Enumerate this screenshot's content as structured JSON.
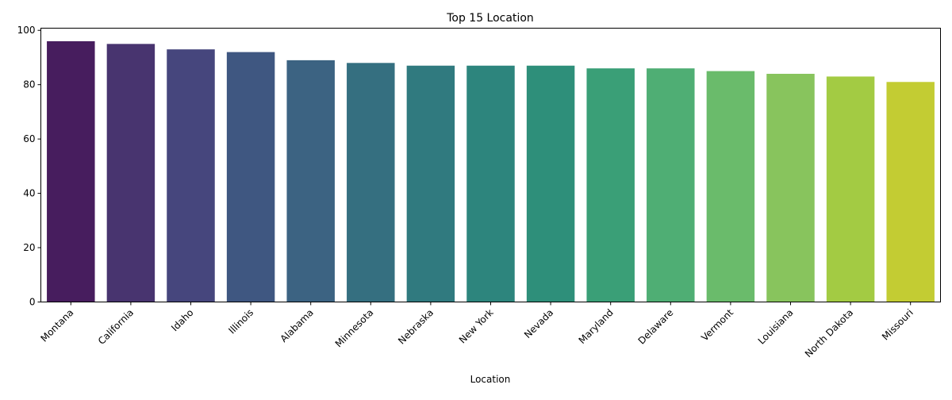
{
  "chart_data": {
    "type": "bar",
    "title": "Top 15 Location",
    "xlabel": "Location",
    "ylabel": "",
    "categories": [
      "Montana",
      "California",
      "Idaho",
      "Illinois",
      "Alabama",
      "Minnesota",
      "Nebraska",
      "New York",
      "Nevada",
      "Maryland",
      "Delaware",
      "Vermont",
      "Louisiana",
      "North Dakota",
      "Missouri"
    ],
    "values": [
      96,
      95,
      93,
      92,
      89,
      88,
      87,
      87,
      87,
      86,
      86,
      85,
      84,
      83,
      81
    ],
    "ylim": [
      0,
      100.8
    ],
    "yticks": [
      0,
      20,
      40,
      60,
      80,
      100
    ],
    "grid": false,
    "legend": "none",
    "colors": [
      "#471d5e",
      "#48346f",
      "#46467d",
      "#3f5781",
      "#3c6382",
      "#356f80",
      "#307a7f",
      "#2d857d",
      "#2e8f7a",
      "#3a9f77",
      "#4fae74",
      "#6abb6b",
      "#88c45d",
      "#a3cb43",
      "#c3cc33"
    ]
  }
}
